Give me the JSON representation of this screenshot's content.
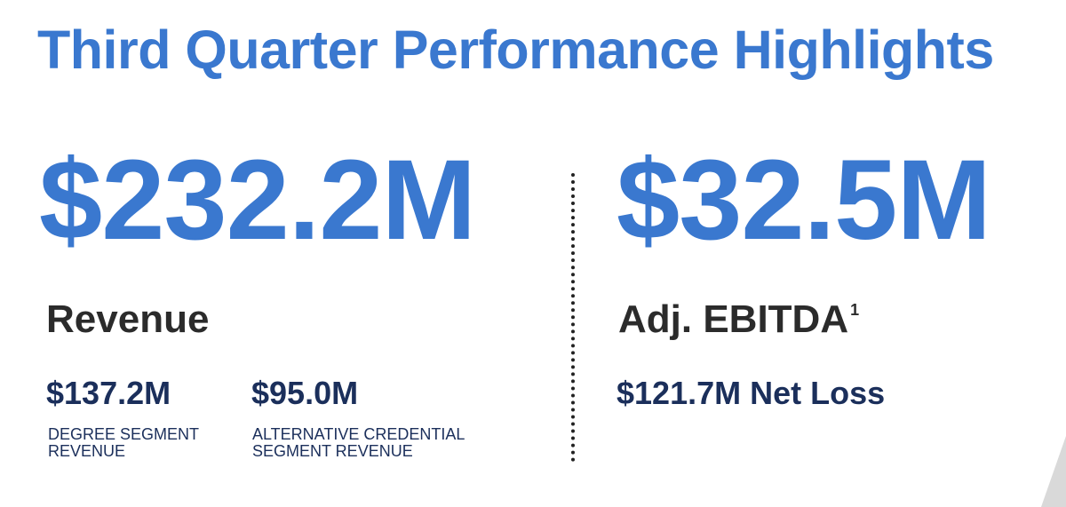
{
  "title": "Third Quarter Performance Highlights",
  "revenue": {
    "value": "$232.2M",
    "label": "Revenue",
    "segments": [
      {
        "value": "$137.2M",
        "caption": "DEGREE SEGMENT REVENUE"
      },
      {
        "value": "$95.0M",
        "caption": "ALTERNATIVE CREDENTIAL SEGMENT REVENUE"
      }
    ]
  },
  "ebitda": {
    "value": "$32.5M",
    "label": "Adj. EBITDA",
    "footnote": "1",
    "net_loss": "$121.7M Net Loss"
  },
  "colors": {
    "accent": "#3a78cf",
    "navy": "#1b2f5b",
    "dark_text": "#2b2b2b"
  }
}
